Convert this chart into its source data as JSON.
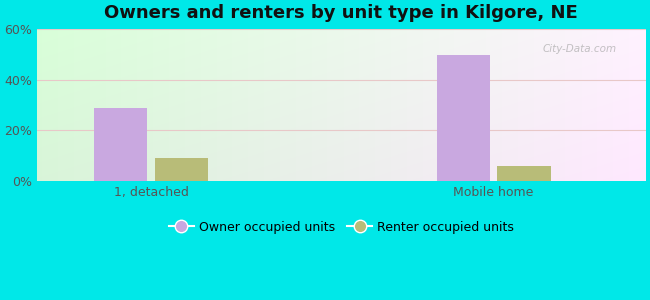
{
  "title": "Owners and renters by unit type in Kilgore, NE",
  "categories": [
    "1, detached",
    "Mobile home"
  ],
  "owner_values": [
    29,
    50
  ],
  "renter_values": [
    9,
    6
  ],
  "owner_color": "#c9a8e0",
  "renter_color": "#b8bc78",
  "ylim": [
    0,
    60
  ],
  "yticks": [
    0,
    20,
    40,
    60
  ],
  "ytick_labels": [
    "0%",
    "20%",
    "40%",
    "60%"
  ],
  "bar_width": 0.28,
  "group_positions": [
    0.9,
    2.7
  ],
  "xlim": [
    0.3,
    3.5
  ],
  "legend_owner": "Owner occupied units",
  "legend_renter": "Renter occupied units",
  "outer_bg": "#00e8e8",
  "title_fontsize": 13,
  "tick_fontsize": 9,
  "legend_fontsize": 9,
  "watermark": "City-Data.com"
}
